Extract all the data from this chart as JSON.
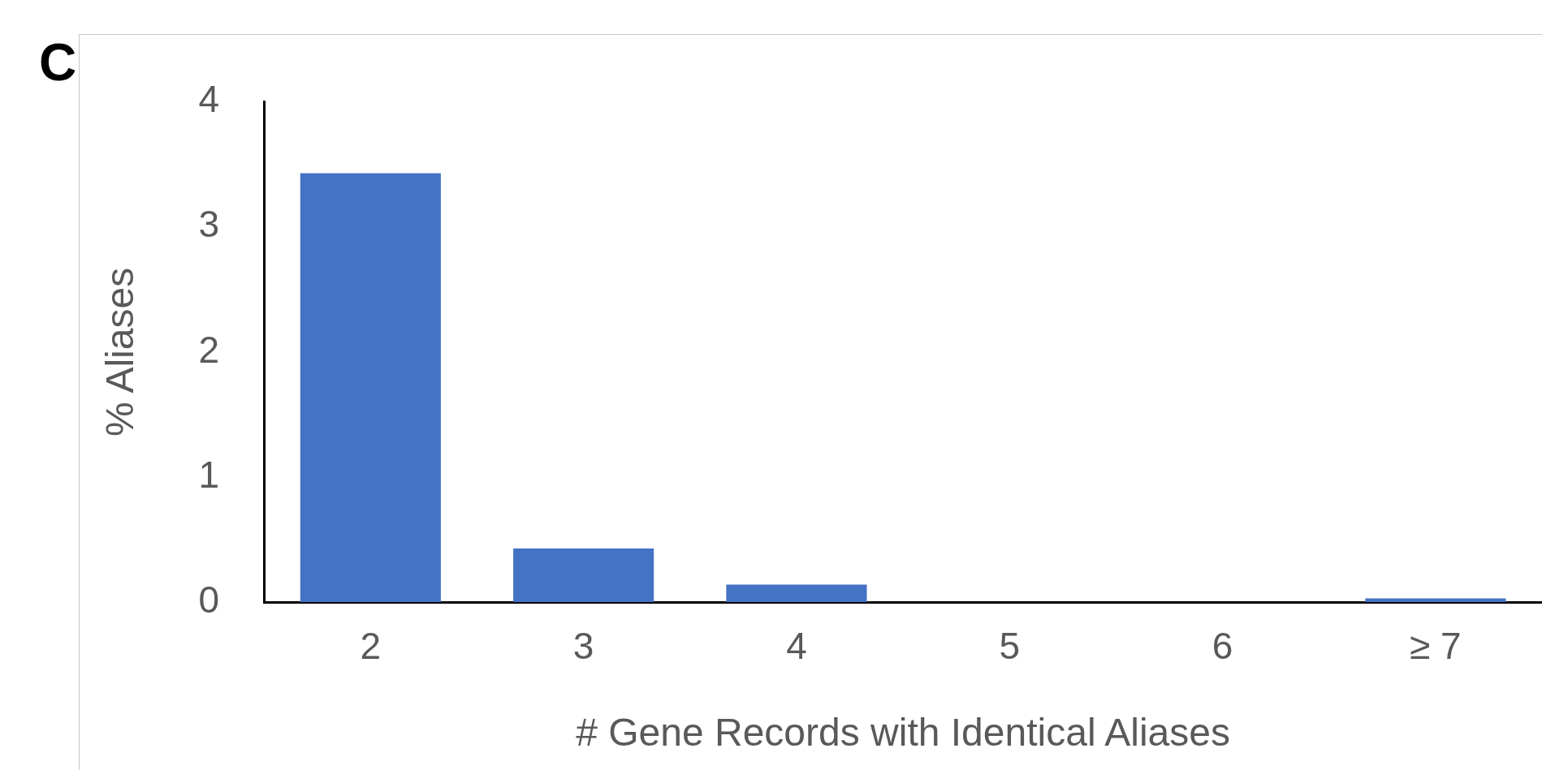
{
  "chart_data": {
    "type": "bar",
    "xlabel": "# Gene Records with Identical Aliases",
    "ylabel": "% Aliases",
    "annotations": [
      "C"
    ],
    "categories": [
      "2",
      "3",
      "4",
      "5",
      "6",
      "≥ 7"
    ],
    "values": [
      3.43,
      0.43,
      0.14,
      0,
      0,
      0.03
    ],
    "color": "#4472c4",
    "ylim": [
      0,
      4
    ],
    "yticks": [
      0,
      1,
      2,
      3,
      4
    ],
    "grid": false,
    "legend": false
  }
}
